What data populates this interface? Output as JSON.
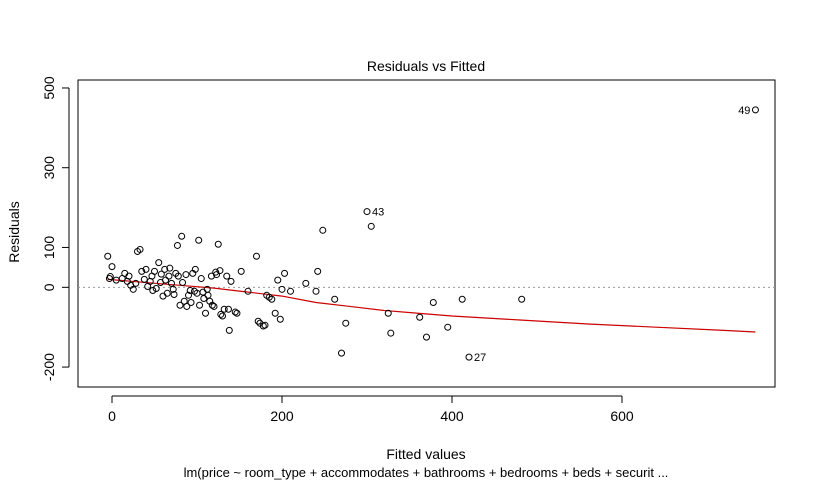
{
  "chart_data": {
    "type": "scatter",
    "title": "Residuals vs Fitted",
    "xlabel": "Fitted values",
    "ylabel": "Residuals",
    "subtitle": "lm(price ~ room_type + accommodates + bathrooms + bedrooms + beds + securit ...",
    "xlim": [
      -40,
      780
    ],
    "ylim": [
      -250,
      520
    ],
    "xticks": [
      0,
      200,
      400,
      600
    ],
    "yticks": [
      -200,
      0,
      100,
      300,
      500
    ],
    "reference_line_y": 0,
    "grid": false,
    "points": [
      [
        -5,
        78
      ],
      [
        0,
        52
      ],
      [
        -3,
        22
      ],
      [
        5,
        18
      ],
      [
        -2,
        27
      ],
      [
        12,
        22
      ],
      [
        15,
        35
      ],
      [
        20,
        28
      ],
      [
        18,
        15
      ],
      [
        22,
        5
      ],
      [
        25,
        -5
      ],
      [
        28,
        10
      ],
      [
        30,
        90
      ],
      [
        33,
        95
      ],
      [
        35,
        40
      ],
      [
        38,
        20
      ],
      [
        40,
        45
      ],
      [
        42,
        2
      ],
      [
        45,
        15
      ],
      [
        47,
        28
      ],
      [
        48,
        -8
      ],
      [
        50,
        40
      ],
      [
        52,
        -3
      ],
      [
        55,
        62
      ],
      [
        57,
        12
      ],
      [
        58,
        33
      ],
      [
        60,
        -22
      ],
      [
        62,
        45
      ],
      [
        63,
        18
      ],
      [
        65,
        -15
      ],
      [
        67,
        28
      ],
      [
        68,
        48
      ],
      [
        70,
        10
      ],
      [
        72,
        -5
      ],
      [
        73,
        -18
      ],
      [
        75,
        35
      ],
      [
        77,
        105
      ],
      [
        78,
        28
      ],
      [
        80,
        -45
      ],
      [
        82,
        128
      ],
      [
        83,
        12
      ],
      [
        85,
        -35
      ],
      [
        87,
        32
      ],
      [
        88,
        -48
      ],
      [
        90,
        -20
      ],
      [
        92,
        -8
      ],
      [
        93,
        -38
      ],
      [
        95,
        35
      ],
      [
        97,
        -10
      ],
      [
        98,
        45
      ],
      [
        100,
        -15
      ],
      [
        102,
        118
      ],
      [
        103,
        -45
      ],
      [
        105,
        22
      ],
      [
        107,
        -12
      ],
      [
        108,
        -28
      ],
      [
        110,
        -65
      ],
      [
        112,
        -5
      ],
      [
        113,
        -20
      ],
      [
        115,
        -35
      ],
      [
        117,
        28
      ],
      [
        118,
        -45
      ],
      [
        120,
        -48
      ],
      [
        122,
        38
      ],
      [
        123,
        32
      ],
      [
        125,
        108
      ],
      [
        127,
        42
      ],
      [
        128,
        -68
      ],
      [
        130,
        -72
      ],
      [
        132,
        -55
      ],
      [
        135,
        28
      ],
      [
        137,
        -55
      ],
      [
        138,
        -108
      ],
      [
        140,
        15
      ],
      [
        145,
        -62
      ],
      [
        147,
        -65
      ],
      [
        152,
        40
      ],
      [
        160,
        -10
      ],
      [
        170,
        78
      ],
      [
        172,
        -85
      ],
      [
        174,
        -90
      ],
      [
        178,
        -97
      ],
      [
        180,
        -95
      ],
      [
        182,
        -20
      ],
      [
        185,
        -25
      ],
      [
        188,
        -30
      ],
      [
        192,
        -65
      ],
      [
        195,
        18
      ],
      [
        198,
        -80
      ],
      [
        200,
        -5
      ],
      [
        203,
        35
      ],
      [
        210,
        -10
      ],
      [
        228,
        10
      ],
      [
        240,
        -10
      ],
      [
        242,
        40
      ],
      [
        248,
        143
      ],
      [
        262,
        -30
      ],
      [
        270,
        -165
      ],
      [
        275,
        -90
      ],
      [
        300,
        190
      ],
      [
        305,
        153
      ],
      [
        325,
        -65
      ],
      [
        328,
        -115
      ],
      [
        362,
        -75
      ],
      [
        370,
        -125
      ],
      [
        378,
        -38
      ],
      [
        395,
        -100
      ],
      [
        412,
        -30
      ],
      [
        420,
        -175
      ],
      [
        482,
        -30
      ],
      [
        757,
        445
      ]
    ],
    "labeled_points": [
      {
        "label": "49",
        "x": 757,
        "y": 445,
        "pos": "left"
      },
      {
        "label": "43",
        "x": 300,
        "y": 190,
        "pos": "right"
      },
      {
        "label": "27",
        "x": 420,
        "y": -175,
        "pos": "right"
      }
    ],
    "smooth_line": [
      [
        -5,
        20
      ],
      [
        40,
        12
      ],
      [
        80,
        5
      ],
      [
        120,
        -2
      ],
      [
        160,
        -12
      ],
      [
        200,
        -22
      ],
      [
        240,
        -38
      ],
      [
        280,
        -48
      ],
      [
        320,
        -58
      ],
      [
        360,
        -65
      ],
      [
        400,
        -72
      ],
      [
        480,
        -82
      ],
      [
        560,
        -92
      ],
      [
        640,
        -100
      ],
      [
        720,
        -108
      ],
      [
        757,
        -112
      ]
    ]
  }
}
